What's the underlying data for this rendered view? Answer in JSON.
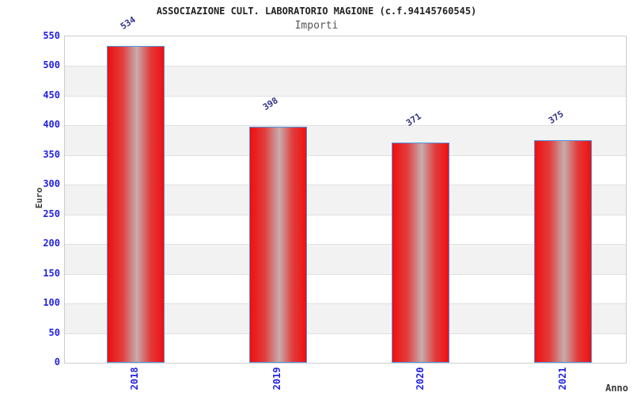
{
  "header": {
    "title": "ASSOCIAZIONE CULT. LABORATORIO MAGIONE (c.f.94145760545)",
    "subtitle": "Importi"
  },
  "chart_data": {
    "type": "bar",
    "title": "ASSOCIAZIONE CULT. LABORATORIO MAGIONE (c.f.94145760545)",
    "subtitle": "Importi",
    "categories": [
      "2018",
      "2019",
      "2020",
      "2021"
    ],
    "values": [
      534,
      398,
      371,
      375
    ],
    "value_labels": [
      "534",
      "398",
      "371",
      "375"
    ],
    "xlabel": "Anno",
    "ylabel": "Euro",
    "ylim": [
      0,
      550
    ],
    "ytick_step": 50,
    "yticks": [
      0,
      50,
      100,
      150,
      200,
      250,
      300,
      350,
      400,
      450,
      500,
      550
    ],
    "grid": true,
    "legend": null,
    "colors": {
      "bar_fill_edge": "#ef0f0f",
      "bar_fill_highlight": "#c6adad",
      "bar_border": "#4f94e0",
      "band_light": "#ffffff",
      "band_dark": "#f2f2f2",
      "gridline": "#e0e0e0",
      "plot_border": "#cccccc",
      "tick_label": "#2323e0",
      "value_label": "#333388",
      "axis_label": "#3a3a3a",
      "title": "#222222",
      "subtitle": "#555555"
    }
  }
}
